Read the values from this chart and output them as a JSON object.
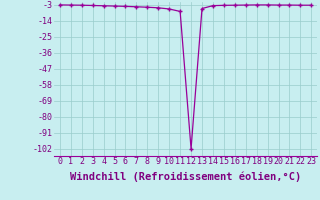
{
  "x": [
    0,
    1,
    2,
    3,
    4,
    5,
    6,
    7,
    8,
    9,
    10,
    11,
    12,
    13,
    14,
    15,
    16,
    17,
    18,
    19,
    20,
    21,
    22,
    23
  ],
  "y": [
    -3,
    -3.1,
    -3.2,
    -3.4,
    -3.6,
    -3.8,
    -4.0,
    -4.3,
    -4.6,
    -5.0,
    -5.8,
    -7.5,
    -102,
    -5.5,
    -3.5,
    -3.3,
    -3.2,
    -3.1,
    -3.0,
    -3.0,
    -3.1,
    -3.1,
    -3.2,
    -3.2
  ],
  "line_color": "#990099",
  "marker": "+",
  "bg_color": "#c8eef0",
  "grid_color": "#99cccc",
  "xlabel": "Windchill (Refroidissement éolien,°C)",
  "yticks": [
    -3,
    -14,
    -25,
    -36,
    -47,
    -58,
    -69,
    -80,
    -91,
    -102
  ],
  "xticks": [
    0,
    1,
    2,
    3,
    4,
    5,
    6,
    7,
    8,
    9,
    10,
    11,
    12,
    13,
    14,
    15,
    16,
    17,
    18,
    19,
    20,
    21,
    22,
    23
  ],
  "ylim": [
    -107,
    -1
  ],
  "xlim": [
    -0.5,
    23.5
  ],
  "xlabel_color": "#800080",
  "tick_color": "#800080",
  "label_fontsize": 7,
  "tick_fontsize": 6,
  "xlabel_fontsize": 7.5
}
